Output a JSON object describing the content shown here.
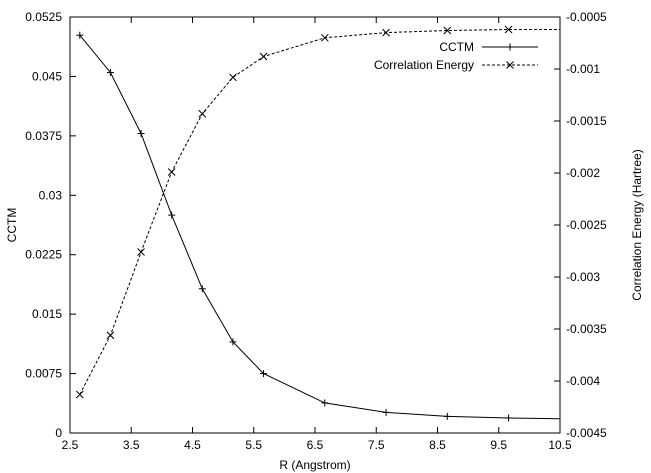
{
  "chart_data": {
    "type": "line",
    "xlabel": "R (Angstrom)",
    "ylabel": "CCTM",
    "y2label": "Correlation Energy (Hartree)",
    "xlim": [
      2.5,
      10.5
    ],
    "ylim": [
      0,
      0.0525
    ],
    "y2lim": [
      -0.0045,
      -0.0005
    ],
    "xticks": [
      "2.5",
      "3.5",
      "4.5",
      "5.5",
      "6.5",
      "7.5",
      "8.5",
      "9.5",
      "10.5"
    ],
    "yticks": [
      "0",
      "0.0075",
      "0.015",
      "0.0225",
      "0.03",
      "0.0375",
      "0.045",
      "0.0525"
    ],
    "y2ticks": [
      "-0.0045",
      "-0.004",
      "-0.0035",
      "-0.003",
      "-0.0025",
      "-0.002",
      "-0.0015",
      "-0.001",
      "-0.0005"
    ],
    "grid": false,
    "legend_position": "top-right",
    "series": [
      {
        "name": "CCTM",
        "axis": "left",
        "line_style": "solid",
        "marker": "+",
        "x": [
          2.66,
          3.16,
          3.66,
          4.16,
          4.66,
          5.16,
          5.66,
          6.66,
          7.66,
          8.66,
          9.66,
          10.5
        ],
        "y": [
          0.0502,
          0.0455,
          0.0378,
          0.0275,
          0.0182,
          0.0115,
          0.0075,
          0.0038,
          0.0026,
          0.0021,
          0.0019,
          0.0018
        ]
      },
      {
        "name": "Correlation Energy",
        "axis": "right",
        "line_style": "dashed",
        "marker": "x",
        "x": [
          2.66,
          3.16,
          3.66,
          4.16,
          4.66,
          5.16,
          5.66,
          6.66,
          7.66,
          8.66,
          9.66,
          10.5
        ],
        "y": [
          -0.00413,
          -0.00356,
          -0.00276,
          -0.00199,
          -0.00143,
          -0.00108,
          -0.00088,
          -0.0007,
          -0.00065,
          -0.00063,
          -0.00062,
          -0.00062
        ]
      }
    ]
  }
}
